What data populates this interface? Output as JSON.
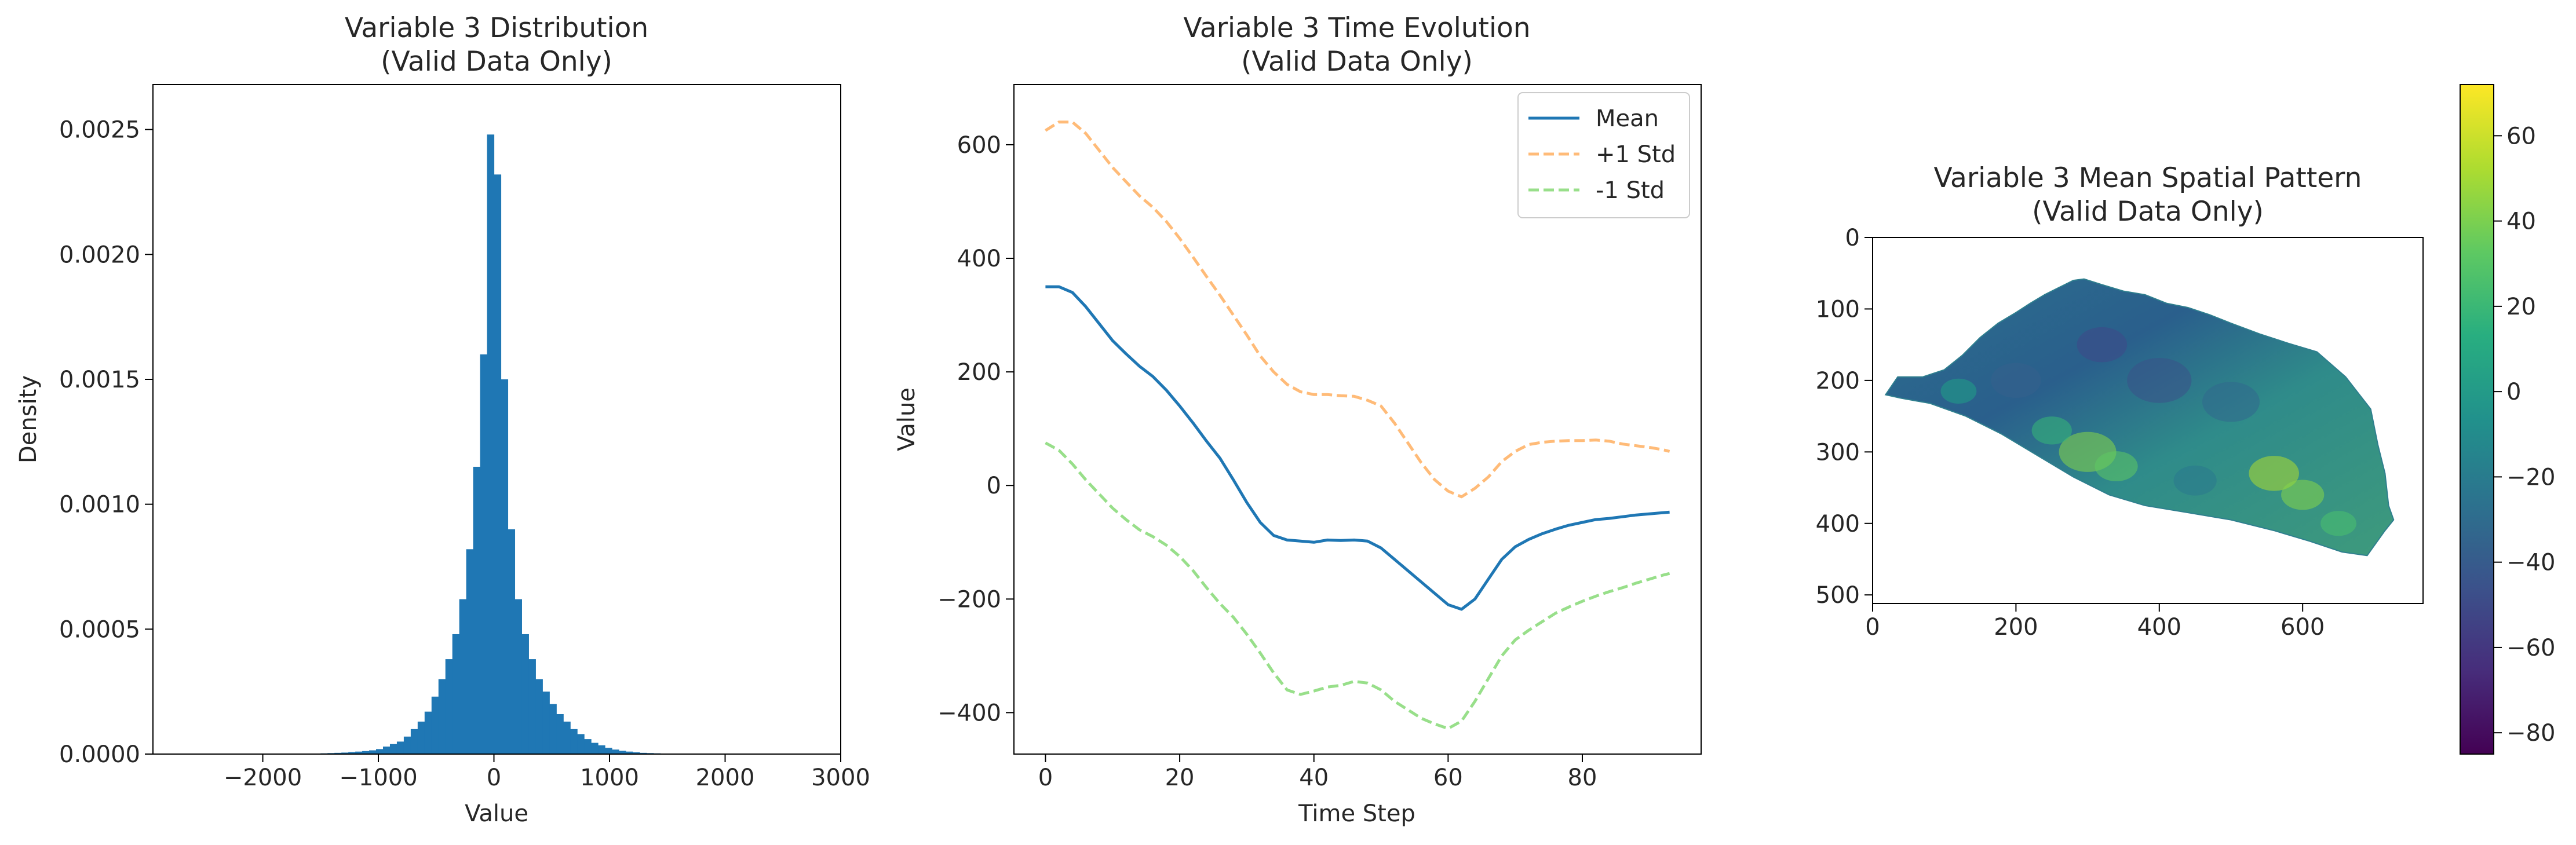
{
  "figure": {
    "panels": [
      {
        "title_line1": "Variable 3 Distribution",
        "title_line2": "(Valid Data Only)",
        "xlabel": "Value",
        "ylabel": "Density"
      },
      {
        "title_line1": "Variable 3 Time Evolution",
        "title_line2": "(Valid Data Only)",
        "xlabel": "Time Step",
        "ylabel": "Value"
      },
      {
        "title_line1": "Variable 3 Mean Spatial Pattern",
        "title_line2": "(Valid Data Only)",
        "xlabel": "",
        "ylabel": ""
      }
    ]
  },
  "chart_data": [
    {
      "type": "bar",
      "title": "Variable 3 Distribution\n(Valid Data Only)",
      "xlabel": "Value",
      "ylabel": "Density",
      "xlim": [
        -2950,
        3000
      ],
      "ylim": [
        0,
        0.00268
      ],
      "xticks": [
        -2000,
        -1000,
        0,
        1000,
        2000,
        3000
      ],
      "xtick_labels": [
        "−2000",
        "−1000",
        "0",
        "1000",
        "2000",
        "3000"
      ],
      "yticks": [
        0,
        0.0005,
        0.001,
        0.0015,
        0.002,
        0.0025
      ],
      "ytick_labels": [
        "0.0000",
        "0.0005",
        "0.0010",
        "0.0015",
        "0.0020",
        "0.0025"
      ],
      "color": "#1f77b4",
      "bin_width": 60,
      "bin_centers": [
        -1470,
        -1410,
        -1350,
        -1290,
        -1230,
        -1170,
        -1110,
        -1050,
        -990,
        -930,
        -870,
        -810,
        -750,
        -690,
        -630,
        -570,
        -510,
        -450,
        -390,
        -330,
        -270,
        -210,
        -150,
        -90,
        -30,
        30,
        90,
        150,
        210,
        270,
        330,
        390,
        450,
        510,
        570,
        630,
        690,
        750,
        810,
        870,
        930,
        990,
        1050,
        1110,
        1170,
        1230,
        1290,
        1350,
        1410,
        1470,
        1530
      ],
      "values": [
        3e-06,
        4e-06,
        5e-06,
        6e-06,
        8e-06,
        1e-05,
        1.2e-05,
        1.5e-05,
        2e-05,
        3e-05,
        4e-05,
        5e-05,
        7e-05,
        0.0001,
        0.00013,
        0.00017,
        0.00023,
        0.0003,
        0.00038,
        0.00048,
        0.00062,
        0.00082,
        0.00115,
        0.0016,
        0.00248,
        0.00232,
        0.0015,
        0.0009,
        0.00062,
        0.00048,
        0.00038,
        0.0003,
        0.00025,
        0.0002,
        0.00016,
        0.00013,
        0.0001,
        8e-05,
        6e-05,
        4.5e-05,
        3.5e-05,
        2.5e-05,
        1.8e-05,
        1.3e-05,
        1e-05,
        7e-06,
        5e-06,
        4e-06,
        3e-06,
        2e-06,
        1e-06
      ]
    },
    {
      "type": "line",
      "title": "Variable 3 Time Evolution\n(Valid Data Only)",
      "xlabel": "Time Step",
      "ylabel": "Value",
      "xlim": [
        -4.7,
        97.7
      ],
      "ylim": [
        -473,
        706
      ],
      "xticks": [
        0,
        20,
        40,
        60,
        80
      ],
      "xtick_labels": [
        "0",
        "20",
        "40",
        "60",
        "80"
      ],
      "yticks": [
        -400,
        -200,
        0,
        200,
        400,
        600
      ],
      "ytick_labels": [
        "−400",
        "−200",
        "0",
        "200",
        "400",
        "600"
      ],
      "legend_position": "upper right",
      "x": [
        0,
        2,
        4,
        6,
        8,
        10,
        12,
        14,
        16,
        18,
        20,
        22,
        24,
        26,
        28,
        30,
        32,
        34,
        36,
        38,
        40,
        42,
        44,
        46,
        48,
        50,
        52,
        54,
        56,
        58,
        60,
        62,
        64,
        66,
        68,
        70,
        72,
        74,
        76,
        78,
        80,
        82,
        84,
        86,
        88,
        90,
        92,
        93
      ],
      "series": [
        {
          "name": "Mean",
          "color": "#1f77b4",
          "dash": "solid",
          "values": [
            350,
            350,
            340,
            315,
            285,
            255,
            232,
            210,
            192,
            168,
            140,
            110,
            78,
            48,
            10,
            -30,
            -65,
            -88,
            -96,
            -98,
            -100,
            -96,
            -97,
            -96,
            -98,
            -110,
            -130,
            -150,
            -170,
            -190,
            -210,
            -218,
            -200,
            -165,
            -130,
            -108,
            -95,
            -85,
            -77,
            -70,
            -65,
            -60,
            -58,
            -55,
            -52,
            -50,
            -48,
            -47
          ]
        },
        {
          "name": "+1 Std",
          "color": "#ffbb78",
          "dash": "dashed",
          "values": [
            625,
            640,
            640,
            620,
            590,
            560,
            535,
            510,
            490,
            465,
            435,
            402,
            368,
            335,
            300,
            265,
            228,
            200,
            178,
            165,
            160,
            160,
            158,
            157,
            150,
            140,
            110,
            75,
            40,
            10,
            -10,
            -20,
            -5,
            15,
            42,
            60,
            72,
            76,
            78,
            79,
            79,
            80,
            78,
            73,
            70,
            67,
            63,
            60
          ]
        },
        {
          "name": "-1 Std",
          "color": "#98df8a",
          "dash": "dashed",
          "values": [
            75,
            62,
            38,
            10,
            -15,
            -40,
            -60,
            -78,
            -90,
            -105,
            -125,
            -150,
            -180,
            -208,
            -232,
            -262,
            -295,
            -330,
            -360,
            -368,
            -362,
            -355,
            -352,
            -345,
            -348,
            -360,
            -380,
            -395,
            -410,
            -420,
            -428,
            -415,
            -380,
            -340,
            -300,
            -272,
            -255,
            -240,
            -225,
            -214,
            -204,
            -195,
            -187,
            -180,
            -172,
            -165,
            -158,
            -155
          ]
        }
      ]
    },
    {
      "type": "heatmap",
      "title": "Variable 3 Mean Spatial Pattern\n(Valid Data Only)",
      "xlim": [
        0,
        768
      ],
      "ylim": [
        512,
        0
      ],
      "xticks": [
        0,
        200,
        400,
        600
      ],
      "xtick_labels": [
        "0",
        "200",
        "400",
        "600"
      ],
      "yticks": [
        0,
        100,
        200,
        300,
        400,
        500
      ],
      "ytick_labels": [
        "0",
        "100",
        "200",
        "300",
        "400",
        "500"
      ],
      "colormap": "viridis",
      "colorbar_range": [
        -85,
        72
      ],
      "colorbar_ticks": [
        60,
        40,
        20,
        0,
        -20,
        -40,
        -60,
        -80
      ],
      "colorbar_tick_labels": [
        "60",
        "40",
        "20",
        "0",
        "−20",
        "−40",
        "−60",
        "−80"
      ],
      "region_outline": [
        [
          18,
          220
        ],
        [
          35,
          195
        ],
        [
          70,
          195
        ],
        [
          100,
          185
        ],
        [
          125,
          165
        ],
        [
          150,
          140
        ],
        [
          175,
          120
        ],
        [
          200,
          105
        ],
        [
          220,
          92
        ],
        [
          240,
          80
        ],
        [
          260,
          70
        ],
        [
          280,
          60
        ],
        [
          295,
          58
        ],
        [
          320,
          66
        ],
        [
          350,
          75
        ],
        [
          380,
          80
        ],
        [
          410,
          92
        ],
        [
          440,
          98
        ],
        [
          470,
          108
        ],
        [
          500,
          120
        ],
        [
          540,
          135
        ],
        [
          580,
          148
        ],
        [
          620,
          160
        ],
        [
          660,
          195
        ],
        [
          695,
          240
        ],
        [
          705,
          290
        ],
        [
          715,
          330
        ],
        [
          720,
          375
        ],
        [
          727,
          395
        ],
        [
          715,
          410
        ],
        [
          690,
          445
        ],
        [
          655,
          440
        ],
        [
          610,
          425
        ],
        [
          560,
          410
        ],
        [
          500,
          395
        ],
        [
          440,
          385
        ],
        [
          380,
          375
        ],
        [
          330,
          360
        ],
        [
          280,
          335
        ],
        [
          230,
          305
        ],
        [
          180,
          275
        ],
        [
          130,
          250
        ],
        [
          80,
          232
        ],
        [
          40,
          225
        ]
      ],
      "dominant_color": "#2a788e"
    }
  ]
}
